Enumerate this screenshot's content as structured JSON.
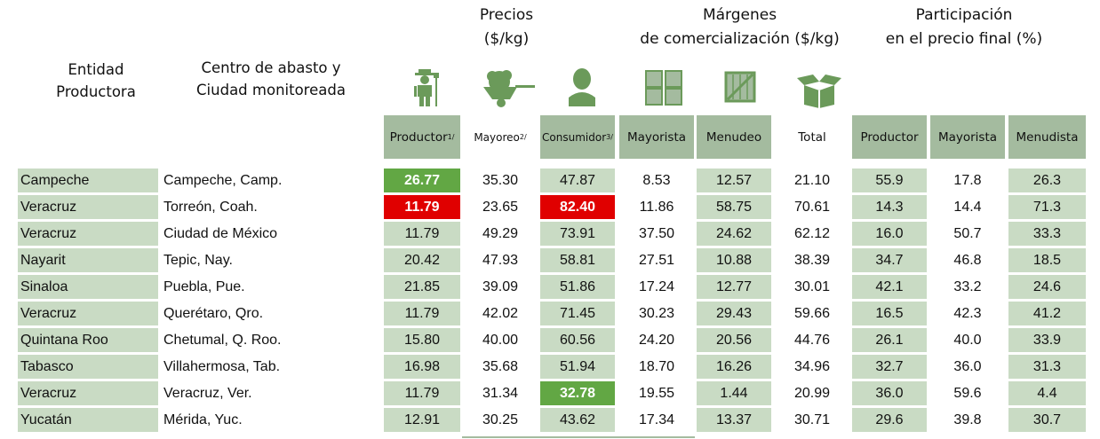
{
  "headers": {
    "entidad": [
      "Entidad",
      "Productora"
    ],
    "centro": [
      "Centro de abasto y",
      "Ciudad monitoreada"
    ],
    "precios": [
      "Precios",
      "($/kg)"
    ],
    "margenes": [
      "Márgenes",
      "de comercialización ($/kg)"
    ],
    "participacion": [
      "Participación",
      "en el precio final (%)"
    ]
  },
  "columns": [
    {
      "label": "Productor",
      "sup": "1/"
    },
    {
      "label": "Mayoreo",
      "sup": "2/"
    },
    {
      "label": "Consumidor",
      "sup": "3/"
    },
    {
      "label": "Mayorista",
      "sup": ""
    },
    {
      "label": "Menudeo",
      "sup": ""
    },
    {
      "label": "Total",
      "sup": ""
    },
    {
      "label": "Productor",
      "sup": ""
    },
    {
      "label": "Mayorista",
      "sup": ""
    },
    {
      "label": "Menudista",
      "sup": ""
    }
  ],
  "icons": [
    "farmer-icon",
    "wheelbarrow-icon",
    "consumer-icon",
    "crates-icon",
    "crate-icon",
    "open-box-icon"
  ],
  "colors": {
    "shaded": "#c9dbc4",
    "header": "#a4bb9f",
    "highlight_low": "#62a744",
    "highlight_high": "#e00000"
  },
  "rows": [
    {
      "entidad": "Campeche",
      "centro": "Campeche, Camp.",
      "values": [
        "26.77",
        "35.30",
        "47.87",
        "8.53",
        "12.57",
        "21.10",
        "55.9",
        "17.8",
        "26.3"
      ],
      "highlight": {
        "0": "green"
      }
    },
    {
      "entidad": "Veracruz",
      "centro": "Torreón, Coah.",
      "values": [
        "11.79",
        "23.65",
        "82.40",
        "11.86",
        "58.75",
        "70.61",
        "14.3",
        "14.4",
        "71.3"
      ],
      "highlight": {
        "0": "red",
        "2": "red"
      }
    },
    {
      "entidad": "Veracruz",
      "centro": "Ciudad de México",
      "values": [
        "11.79",
        "49.29",
        "73.91",
        "37.50",
        "24.62",
        "62.12",
        "16.0",
        "50.7",
        "33.3"
      ],
      "highlight": {}
    },
    {
      "entidad": "Nayarit",
      "centro": "Tepic, Nay.",
      "values": [
        "20.42",
        "47.93",
        "58.81",
        "27.51",
        "10.88",
        "38.39",
        "34.7",
        "46.8",
        "18.5"
      ],
      "highlight": {}
    },
    {
      "entidad": "Sinaloa",
      "centro": "Puebla, Pue.",
      "values": [
        "21.85",
        "39.09",
        "51.86",
        "17.24",
        "12.77",
        "30.01",
        "42.1",
        "33.2",
        "24.6"
      ],
      "highlight": {}
    },
    {
      "entidad": "Veracruz",
      "centro": "Querétaro, Qro.",
      "values": [
        "11.79",
        "42.02",
        "71.45",
        "30.23",
        "29.43",
        "59.66",
        "16.5",
        "42.3",
        "41.2"
      ],
      "highlight": {}
    },
    {
      "entidad": "Quintana Roo",
      "centro": "Chetumal, Q. Roo.",
      "values": [
        "15.80",
        "40.00",
        "60.56",
        "24.20",
        "20.56",
        "44.76",
        "26.1",
        "40.0",
        "33.9"
      ],
      "highlight": {}
    },
    {
      "entidad": "Tabasco",
      "centro": "Villahermosa, Tab.",
      "values": [
        "16.98",
        "35.68",
        "51.94",
        "18.70",
        "16.26",
        "34.96",
        "32.7",
        "36.0",
        "31.3"
      ],
      "highlight": {}
    },
    {
      "entidad": "Veracruz",
      "centro": "Veracruz, Ver.",
      "values": [
        "11.79",
        "31.34",
        "32.78",
        "19.55",
        "1.44",
        "20.99",
        "36.0",
        "59.6",
        "4.4"
      ],
      "highlight": {
        "2": "green"
      }
    },
    {
      "entidad": "Yucatán",
      "centro": "Mérida, Yuc.",
      "values": [
        "12.91",
        "30.25",
        "43.62",
        "17.34",
        "13.37",
        "30.71",
        "29.6",
        "39.8",
        "30.7"
      ],
      "highlight": {}
    }
  ]
}
